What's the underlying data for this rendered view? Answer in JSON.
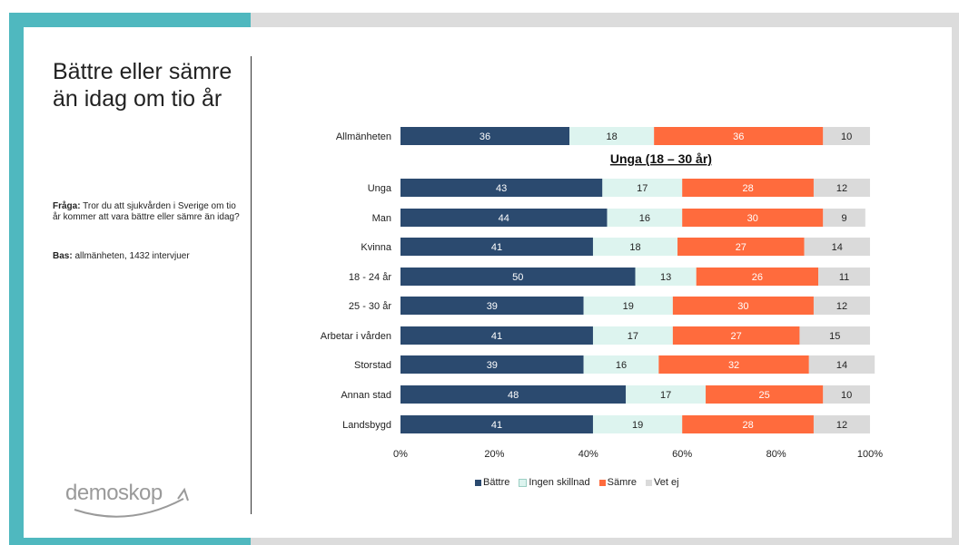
{
  "slide": {
    "title": "Bättre eller sämre än idag om tio år",
    "question_label": "Fråga:",
    "question_text": "Tror du att sjukvården i Sverige om tio år kommer att vara bättre eller sämre än idag?",
    "base_label": "Bas:",
    "base_text": "allmänheten, 1432 intervjuer",
    "logo_text": "demoskop"
  },
  "chart_data": {
    "type": "bar",
    "orientation": "horizontal-stacked-100",
    "categories": [
      "Allmänheten",
      "Unga",
      "Man",
      "Kvinna",
      "18 - 24 år",
      "25 - 30 år",
      "Arbetar i vården",
      "Storstad",
      "Annan stad",
      "Landsbygd"
    ],
    "group_heading": "Unga (18 – 30 år)",
    "series": [
      {
        "name": "Bättre",
        "color": "#2b4a6f",
        "label_color": "#ffffff",
        "values": [
          36,
          43,
          44,
          41,
          50,
          39,
          41,
          39,
          48,
          41
        ]
      },
      {
        "name": "Ingen skillnad",
        "color": "#ddf4ef",
        "label_color": "#222222",
        "values": [
          18,
          17,
          16,
          18,
          13,
          19,
          17,
          16,
          17,
          19
        ]
      },
      {
        "name": "Sämre",
        "color": "#ff6b3d",
        "label_color": "#ffffff",
        "values": [
          36,
          28,
          30,
          27,
          26,
          30,
          27,
          32,
          25,
          28
        ]
      },
      {
        "name": "Vet ej",
        "color": "#dadada",
        "label_color": "#222222",
        "values": [
          10,
          12,
          9,
          14,
          11,
          12,
          15,
          14,
          10,
          12
        ]
      }
    ],
    "xticks": [
      "0%",
      "20%",
      "40%",
      "60%",
      "80%",
      "100%"
    ],
    "xlim": [
      0,
      100
    ],
    "grid": false,
    "legend_position": "bottom"
  }
}
